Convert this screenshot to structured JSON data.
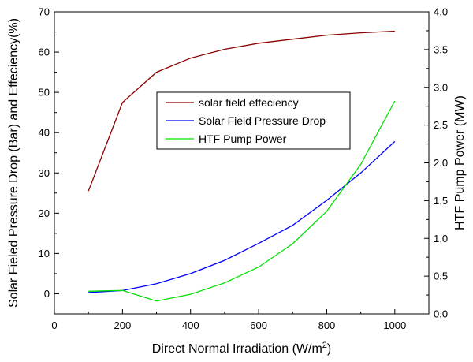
{
  "chart_data": {
    "type": "line",
    "x": [
      100,
      200,
      300,
      400,
      500,
      600,
      700,
      800,
      900,
      1000
    ],
    "xlabel": "Direct Normal Irradiation (W/m",
    "xlabel_sup": "2",
    "xlabel_tail": ")",
    "ylabel_left": "Solar Fieled Pressure Drop (Bar) and Effeciency(%)",
    "ylabel_right": "HTF Pump Power (MW)",
    "xlim": [
      0,
      1100
    ],
    "ylim_left": [
      -5,
      70
    ],
    "ylim_right": [
      0.0,
      4.0
    ],
    "x_ticks": [
      0,
      200,
      400,
      600,
      800,
      1000
    ],
    "y_ticks_left": [
      0,
      10,
      20,
      30,
      40,
      50,
      60,
      70
    ],
    "y_ticks_right": [
      "0.0",
      "0.5",
      "1.0",
      "1.5",
      "2.0",
      "2.5",
      "3.0",
      "3.5",
      "4.0"
    ],
    "grid": false,
    "legend_position": "center",
    "series": [
      {
        "name": "solar field effeciency",
        "axis": "left",
        "color": "#8b0000",
        "values": [
          25.5,
          47.5,
          55.0,
          58.5,
          60.7,
          62.2,
          63.2,
          64.2,
          64.8,
          65.2
        ]
      },
      {
        "name": "Solar Field Pressure Drop",
        "axis": "left",
        "color": "#0000ff",
        "values": [
          0.3,
          0.8,
          2.5,
          5.0,
          8.3,
          12.5,
          17.0,
          23.2,
          30.0,
          37.8
        ]
      },
      {
        "name": "HTF Pump Power",
        "axis": "right",
        "color": "#00e000",
        "values": [
          0.3,
          0.31,
          0.17,
          0.26,
          0.41,
          0.62,
          0.93,
          1.36,
          1.98,
          2.82
        ]
      }
    ]
  }
}
